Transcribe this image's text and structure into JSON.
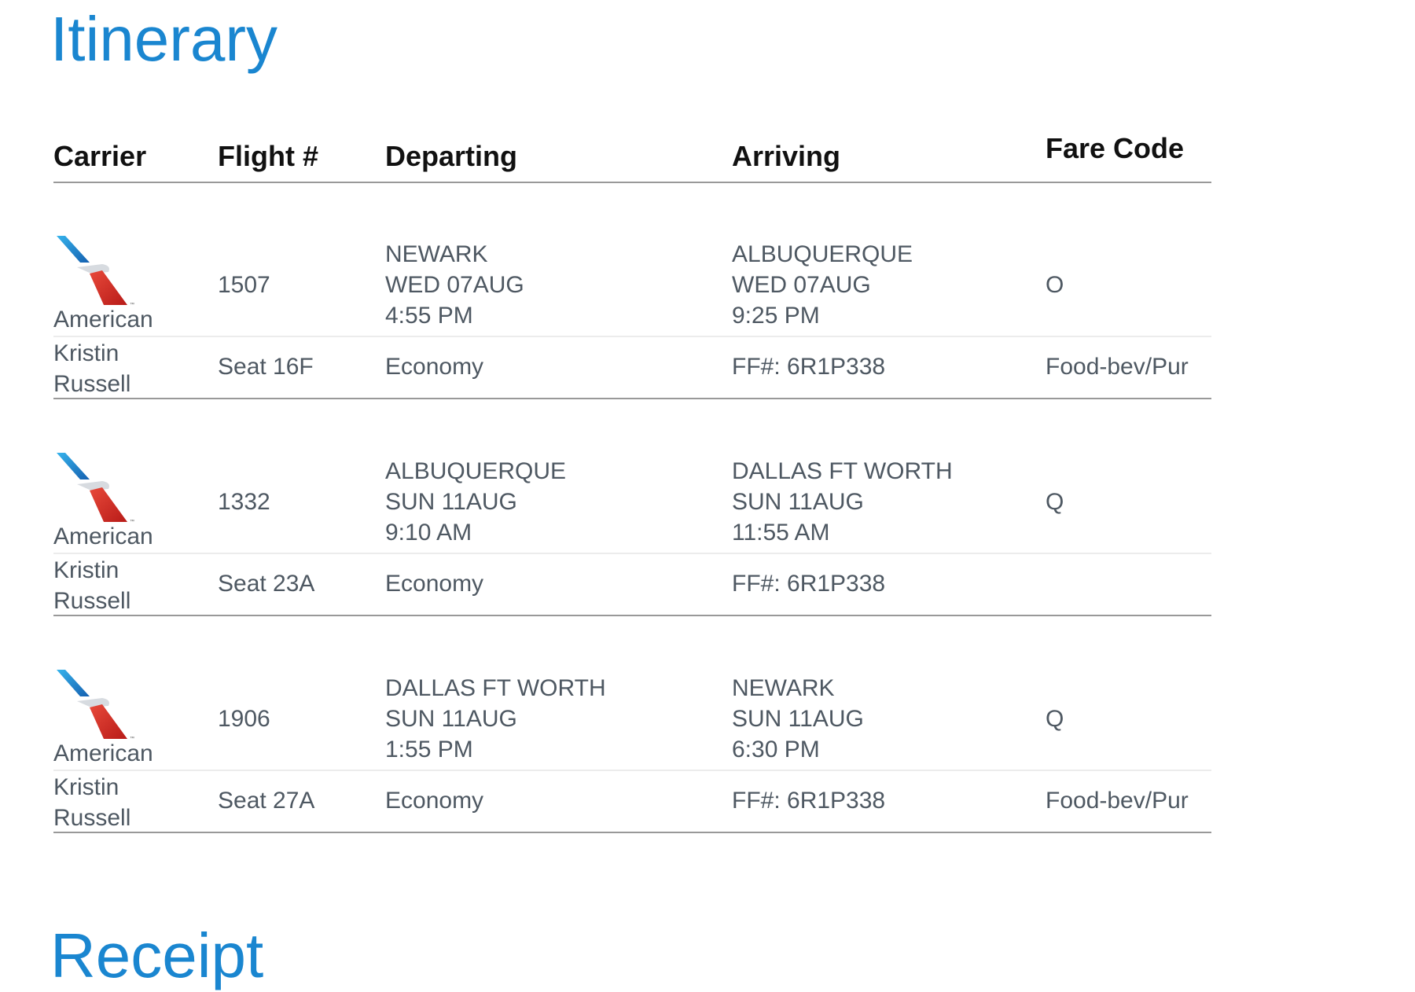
{
  "title": "Itinerary",
  "next_section_title": "Receipt",
  "columns": [
    "Carrier",
    "Flight #",
    "Departing",
    "Arriving",
    "Fare Code"
  ],
  "colors": {
    "accent": "#1a86d0",
    "logo_blue": "#1f8fd8",
    "logo_red": "#d5281f"
  },
  "flights": [
    {
      "carrier": "American",
      "logo": "american-airlines-tail-icon",
      "flight": "1507",
      "dep_city": "NEWARK",
      "dep_date": "WED 07AUG",
      "dep_time": "4:55 PM",
      "arr_city": "ALBUQUERQUE",
      "arr_date": "WED 07AUG",
      "arr_time": "9:25 PM",
      "fare_code": "O",
      "passenger_first": "Kristin",
      "passenger_last": "Russell",
      "seat": "Seat 16F",
      "cabin": "Economy",
      "ff": "FF#: 6R1P338",
      "meal": "Food-bev/Pur"
    },
    {
      "carrier": "American",
      "logo": "american-airlines-tail-icon",
      "flight": "1332",
      "dep_city": "ALBUQUERQUE",
      "dep_date": "SUN 11AUG",
      "dep_time": "9:10 AM",
      "arr_city": "DALLAS FT WORTH",
      "arr_date": "SUN 11AUG",
      "arr_time": "11:55 AM",
      "fare_code": "Q",
      "passenger_first": "Kristin",
      "passenger_last": "Russell",
      "seat": "Seat 23A",
      "cabin": "Economy",
      "ff": "FF#: 6R1P338",
      "meal": ""
    },
    {
      "carrier": "American",
      "logo": "american-airlines-tail-icon",
      "flight": "1906",
      "dep_city": "DALLAS FT WORTH",
      "dep_date": "SUN 11AUG",
      "dep_time": "1:55 PM",
      "arr_city": "NEWARK",
      "arr_date": "SUN 11AUG",
      "arr_time": "6:30 PM",
      "fare_code": "Q",
      "passenger_first": "Kristin",
      "passenger_last": "Russell",
      "seat": "Seat 27A",
      "cabin": "Economy",
      "ff": "FF#: 6R1P338",
      "meal": "Food-bev/Pur"
    }
  ]
}
